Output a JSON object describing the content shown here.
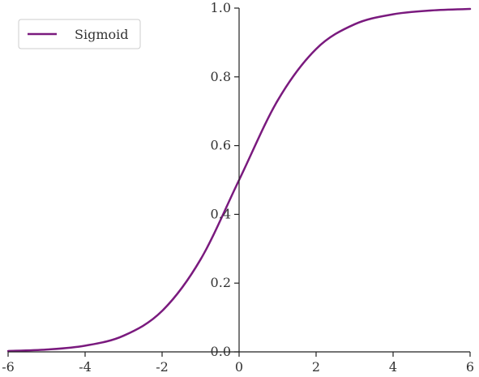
{
  "chart_data": {
    "type": "line",
    "title": "",
    "xlabel": "",
    "ylabel": "",
    "xlim": [
      -6,
      6
    ],
    "ylim": [
      0,
      1
    ],
    "xticks": [
      -6,
      -4,
      -2,
      0,
      2,
      4,
      6
    ],
    "yticks": [
      0.0,
      0.2,
      0.4,
      0.6,
      0.8,
      1.0
    ],
    "xtick_labels": [
      "-6",
      "-4",
      "-2",
      "0",
      "2",
      "4",
      "6"
    ],
    "ytick_labels": [
      "0.0",
      "0.2",
      "0.4",
      "0.6",
      "0.8",
      "1.0"
    ],
    "grid": false,
    "legend_position": "top-left",
    "series": [
      {
        "name": "Sigmoid",
        "color": "#7a1a7e",
        "x": [
          -6,
          -5,
          -4,
          -3,
          -2,
          -1,
          0,
          1,
          2,
          3,
          4,
          5,
          6
        ],
        "y": [
          0.0025,
          0.0067,
          0.018,
          0.047,
          0.119,
          0.269,
          0.5,
          0.731,
          0.881,
          0.953,
          0.982,
          0.9933,
          0.9975
        ]
      }
    ]
  }
}
